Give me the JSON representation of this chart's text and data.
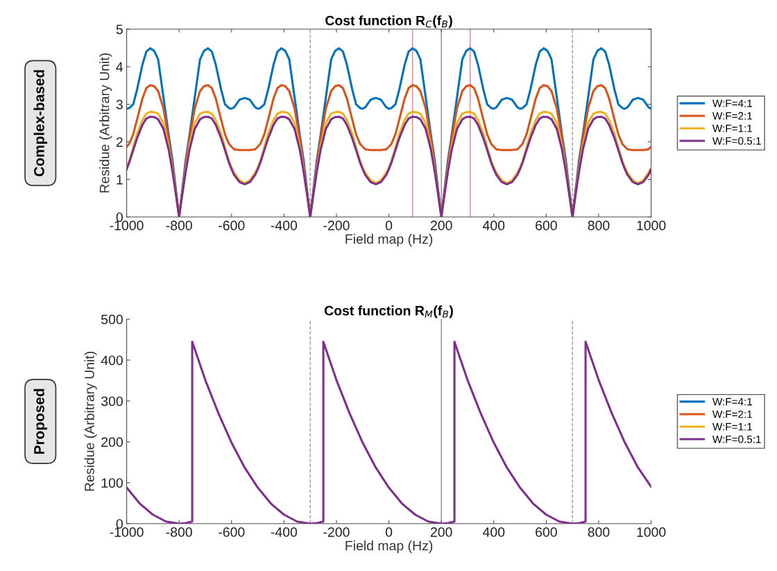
{
  "chart_data": [
    {
      "type": "line",
      "title": "Cost function R$_{C}$(f$_{B}$)",
      "xlabel": "Field map (Hz)",
      "ylabel": "Residue (Arbitrary Unit)",
      "annotations": [
        "Complex-based"
      ],
      "x": [
        -1000,
        -990,
        -975,
        -960,
        -940,
        -925,
        -910,
        -895,
        -880,
        -860,
        -840,
        -825,
        -810,
        -800,
        -790,
        -775,
        -760,
        -740,
        -720,
        -705,
        -690,
        -675,
        -660,
        -640,
        -625,
        -610,
        -600,
        -590,
        -570,
        -550,
        -530,
        -510,
        -500,
        -490,
        -475,
        -460,
        -440,
        -425,
        -410,
        -395,
        -380,
        -360,
        -340,
        -325,
        -310,
        -300,
        -290,
        -275,
        -260,
        -240,
        -220,
        -205,
        -190,
        -175,
        -160,
        -140,
        -125,
        -110,
        -100,
        -90,
        -70,
        -50,
        -30,
        -10,
        0,
        10,
        25,
        40,
        60,
        75,
        90,
        105,
        120,
        140,
        160,
        175,
        190,
        200,
        210,
        225,
        240,
        260,
        280,
        295,
        310,
        325,
        340,
        360,
        375,
        390,
        400,
        410,
        430,
        450,
        470,
        490,
        500,
        510,
        525,
        540,
        560,
        575,
        590,
        605,
        620,
        640,
        660,
        675,
        690,
        700,
        710,
        725,
        740,
        760,
        780,
        795,
        810,
        825,
        840,
        860,
        875,
        890,
        900,
        910,
        930,
        950,
        970,
        990,
        1000
      ],
      "series": [
        {
          "name": "W:F=4:1",
          "color": "#0072bd",
          "values": [
            2.88,
            2.9,
            3.0,
            3.4,
            4.05,
            4.4,
            4.49,
            4.42,
            4.2,
            3.2,
            2.2,
            1.5,
            0.6,
            0,
            0.6,
            1.5,
            2.2,
            3.2,
            4.2,
            4.42,
            4.49,
            4.4,
            4.05,
            3.4,
            3.0,
            2.9,
            2.88,
            2.92,
            3.12,
            3.17,
            3.12,
            2.92,
            2.88,
            2.9,
            3.0,
            3.4,
            4.05,
            4.4,
            4.49,
            4.42,
            4.2,
            3.2,
            2.2,
            1.5,
            0.6,
            0,
            0.6,
            1.5,
            2.2,
            3.2,
            4.2,
            4.42,
            4.49,
            4.4,
            4.05,
            3.4,
            3.0,
            2.9,
            2.88,
            2.92,
            3.12,
            3.17,
            3.12,
            2.92,
            2.88,
            2.9,
            3.0,
            3.4,
            4.05,
            4.4,
            4.49,
            4.42,
            4.2,
            3.2,
            2.2,
            1.5,
            0.6,
            0,
            0.6,
            1.5,
            2.2,
            3.2,
            4.2,
            4.42,
            4.49,
            4.4,
            4.05,
            3.4,
            3.0,
            2.9,
            2.88,
            2.92,
            3.12,
            3.17,
            3.12,
            2.92,
            2.88,
            2.9,
            3.0,
            3.4,
            4.05,
            4.4,
            4.49,
            4.42,
            4.2,
            3.2,
            2.2,
            1.5,
            0.6,
            0,
            0.6,
            1.5,
            2.2,
            3.2,
            4.2,
            4.42,
            4.49,
            4.4,
            4.05,
            3.4,
            3.0,
            2.9,
            2.88,
            2.92,
            3.12,
            3.17,
            3.12,
            2.92,
            2.88
          ]
        },
        {
          "name": "W:F=2:1",
          "color": "#d95319",
          "values": [
            1.87,
            1.95,
            2.2,
            2.6,
            3.15,
            3.43,
            3.51,
            3.48,
            3.35,
            2.9,
            2.1,
            1.35,
            0.55,
            0,
            0.55,
            1.35,
            2.1,
            2.9,
            3.35,
            3.48,
            3.51,
            3.43,
            3.15,
            2.6,
            2.2,
            1.95,
            1.87,
            1.8,
            1.78,
            1.78,
            1.78,
            1.8,
            1.87,
            1.95,
            2.2,
            2.6,
            3.15,
            3.43,
            3.51,
            3.48,
            3.35,
            2.9,
            2.1,
            1.35,
            0.55,
            0,
            0.55,
            1.35,
            2.1,
            2.9,
            3.35,
            3.48,
            3.51,
            3.43,
            3.15,
            2.6,
            2.2,
            1.95,
            1.87,
            1.8,
            1.78,
            1.78,
            1.78,
            1.8,
            1.87,
            1.95,
            2.2,
            2.6,
            3.15,
            3.43,
            3.51,
            3.48,
            3.35,
            2.9,
            2.1,
            1.35,
            0.55,
            0,
            0.55,
            1.35,
            2.1,
            2.9,
            3.35,
            3.48,
            3.51,
            3.43,
            3.15,
            2.6,
            2.2,
            1.95,
            1.87,
            1.8,
            1.78,
            1.78,
            1.78,
            1.8,
            1.87,
            1.95,
            2.2,
            2.6,
            3.15,
            3.43,
            3.51,
            3.48,
            3.35,
            2.9,
            2.1,
            1.35,
            0.55,
            0,
            0.55,
            1.35,
            2.1,
            2.9,
            3.35,
            3.48,
            3.51,
            3.43,
            3.15,
            2.6,
            2.2,
            1.95,
            1.87,
            1.8,
            1.78,
            1.78,
            1.78,
            1.8,
            1.87
          ]
        },
        {
          "name": "W:F=1:1",
          "color": "#edb120",
          "values": [
            1.32,
            1.5,
            1.85,
            2.22,
            2.58,
            2.75,
            2.8,
            2.79,
            2.75,
            2.5,
            1.9,
            1.25,
            0.5,
            0,
            0.5,
            1.25,
            1.9,
            2.5,
            2.75,
            2.79,
            2.8,
            2.75,
            2.58,
            2.22,
            1.85,
            1.5,
            1.32,
            1.18,
            0.98,
            0.9,
            0.98,
            1.18,
            1.32,
            1.5,
            1.85,
            2.22,
            2.58,
            2.75,
            2.8,
            2.79,
            2.75,
            2.5,
            1.9,
            1.25,
            0.5,
            0,
            0.5,
            1.25,
            1.9,
            2.5,
            2.75,
            2.79,
            2.8,
            2.75,
            2.58,
            2.22,
            1.85,
            1.5,
            1.32,
            1.18,
            0.98,
            0.9,
            0.98,
            1.18,
            1.32,
            1.5,
            1.85,
            2.22,
            2.58,
            2.75,
            2.8,
            2.79,
            2.75,
            2.5,
            1.9,
            1.25,
            0.5,
            0,
            0.5,
            1.25,
            1.9,
            2.5,
            2.75,
            2.79,
            2.8,
            2.75,
            2.58,
            2.22,
            1.85,
            1.5,
            1.32,
            1.18,
            0.98,
            0.9,
            0.98,
            1.18,
            1.32,
            1.5,
            1.85,
            2.22,
            2.58,
            2.75,
            2.8,
            2.79,
            2.75,
            2.5,
            1.9,
            1.25,
            0.5,
            0,
            0.5,
            1.25,
            1.9,
            2.5,
            2.75,
            2.79,
            2.8,
            2.75,
            2.58,
            2.22,
            1.85,
            1.5,
            1.32,
            1.18,
            0.98,
            0.9,
            0.98,
            1.18,
            1.32
          ]
        },
        {
          "name": "W:F=0.5:1",
          "color": "#7e2f8e",
          "values": [
            1.27,
            1.45,
            1.78,
            2.1,
            2.45,
            2.62,
            2.67,
            2.66,
            2.6,
            2.35,
            1.8,
            1.2,
            0.5,
            0,
            0.5,
            1.2,
            1.8,
            2.35,
            2.6,
            2.66,
            2.67,
            2.62,
            2.45,
            2.1,
            1.78,
            1.45,
            1.27,
            1.12,
            0.93,
            0.87,
            0.93,
            1.12,
            1.27,
            1.45,
            1.78,
            2.1,
            2.45,
            2.62,
            2.67,
            2.66,
            2.6,
            2.35,
            1.8,
            1.2,
            0.5,
            0,
            0.5,
            1.2,
            1.8,
            2.35,
            2.6,
            2.66,
            2.67,
            2.62,
            2.45,
            2.1,
            1.78,
            1.45,
            1.27,
            1.12,
            0.93,
            0.87,
            0.93,
            1.12,
            1.27,
            1.45,
            1.78,
            2.1,
            2.45,
            2.62,
            2.67,
            2.66,
            2.6,
            2.35,
            1.8,
            1.2,
            0.5,
            0,
            0.5,
            1.2,
            1.8,
            2.35,
            2.6,
            2.66,
            2.67,
            2.62,
            2.45,
            2.1,
            1.78,
            1.45,
            1.27,
            1.12,
            0.93,
            0.87,
            0.93,
            1.12,
            1.27,
            1.45,
            1.78,
            2.1,
            2.45,
            2.62,
            2.67,
            2.66,
            2.6,
            2.35,
            1.8,
            1.2,
            0.5,
            0,
            0.5,
            1.2,
            1.8,
            2.35,
            2.6,
            2.66,
            2.67,
            2.62,
            2.45,
            2.1,
            1.78,
            1.45,
            1.27,
            1.12,
            0.93,
            0.87,
            0.93,
            1.12,
            1.27
          ]
        }
      ],
      "xlim": [
        -1000,
        1000
      ],
      "xticks": [
        -1000,
        -800,
        -600,
        -400,
        -200,
        0,
        200,
        400,
        600,
        800,
        1000
      ],
      "ylim": [
        0,
        5
      ],
      "yticks": [
        0,
        1,
        2,
        3,
        4,
        5
      ],
      "legend": "right",
      "line_style": "solid",
      "ref_lines": [
        {
          "axis": "x",
          "value": -300,
          "color": "#999999",
          "line_style": "dashed"
        },
        {
          "axis": "x",
          "value": 700,
          "color": "#999999",
          "line_style": "dashed"
        },
        {
          "axis": "x",
          "value": 200,
          "color": "#888888",
          "line_style": "solid"
        },
        {
          "axis": "x",
          "value": 90,
          "color": "#f08080",
          "line_style": "solid"
        },
        {
          "axis": "x",
          "value": 310,
          "color": "#f08080",
          "line_style": "solid"
        }
      ]
    },
    {
      "type": "line",
      "title": "Cost function R$_{M}$(f$_{B}$)",
      "xlabel": "Field map (Hz)",
      "ylabel": "Residue (Arbitrary Unit)",
      "annotations": [
        "Proposed"
      ],
      "x": [
        -1000,
        -950,
        -900,
        -850,
        -800,
        -775,
        -750,
        -750,
        -700,
        -650,
        -600,
        -550,
        -500,
        -450,
        -400,
        -350,
        -300,
        -275,
        -250,
        -250,
        -200,
        -150,
        -100,
        -50,
        0,
        50,
        100,
        150,
        200,
        225,
        250,
        250,
        300,
        350,
        400,
        450,
        500,
        550,
        600,
        650,
        700,
        725,
        750,
        750,
        800,
        850,
        900,
        950,
        1000
      ],
      "series": [
        {
          "name": "W:F=4:1",
          "color": "#0072bd",
          "values": [
            null,
            null,
            null,
            null,
            null,
            null,
            null,
            null,
            null,
            null,
            null,
            null,
            null,
            null,
            null,
            null,
            null,
            null,
            null,
            null,
            null,
            null,
            null,
            null,
            null,
            null,
            null,
            null,
            null,
            null,
            null,
            null,
            null,
            null,
            null,
            null,
            null,
            null,
            null,
            null,
            null,
            null,
            null,
            null,
            null,
            null,
            null,
            null,
            null
          ]
        },
        {
          "name": "W:F=2:1",
          "color": "#d95319",
          "values": [
            null,
            null,
            null,
            null,
            null,
            null,
            null,
            null,
            null,
            null,
            null,
            null,
            null,
            null,
            null,
            null,
            null,
            null,
            null,
            null,
            null,
            null,
            null,
            null,
            null,
            null,
            null,
            null,
            null,
            null,
            null,
            null,
            null,
            null,
            null,
            null,
            null,
            null,
            null,
            null,
            null,
            null,
            null,
            null,
            null,
            null,
            null,
            null,
            null
          ]
        },
        {
          "name": "W:F=1:1",
          "color": "#edb120",
          "values": [
            null,
            null,
            null,
            null,
            null,
            null,
            null,
            null,
            null,
            null,
            null,
            null,
            null,
            null,
            null,
            null,
            null,
            null,
            null,
            null,
            null,
            null,
            null,
            null,
            null,
            null,
            null,
            null,
            null,
            null,
            null,
            null,
            null,
            null,
            null,
            null,
            null,
            null,
            null,
            null,
            null,
            null,
            null,
            null,
            null,
            null,
            null,
            null,
            null
          ]
        },
        {
          "name": "W:F=0.5:1",
          "color": "#7e2f8e",
          "values": [
            88,
            49,
            22,
            5,
            0,
            1,
            5,
            445,
            351,
            270,
            198,
            137,
            88,
            49,
            22,
            5,
            0,
            1,
            5,
            445,
            351,
            270,
            198,
            137,
            88,
            49,
            22,
            5,
            0,
            1,
            5,
            445,
            351,
            270,
            198,
            137,
            88,
            49,
            22,
            5,
            0,
            1,
            5,
            445,
            351,
            270,
            198,
            137,
            90
          ]
        }
      ],
      "xlim": [
        -1000,
        1000
      ],
      "xticks": [
        -1000,
        -800,
        -600,
        -400,
        -200,
        0,
        200,
        400,
        600,
        800,
        1000
      ],
      "ylim": [
        0,
        500
      ],
      "yticks": [
        0,
        100,
        200,
        300,
        400,
        500
      ],
      "legend": "right",
      "line_style": "solid",
      "ref_lines": [
        {
          "axis": "x",
          "value": -300,
          "color": "#999999",
          "line_style": "dashed"
        },
        {
          "axis": "x",
          "value": 700,
          "color": "#999999",
          "line_style": "dashed"
        },
        {
          "axis": "x",
          "value": 200,
          "color": "#888888",
          "line_style": "solid"
        }
      ]
    }
  ]
}
